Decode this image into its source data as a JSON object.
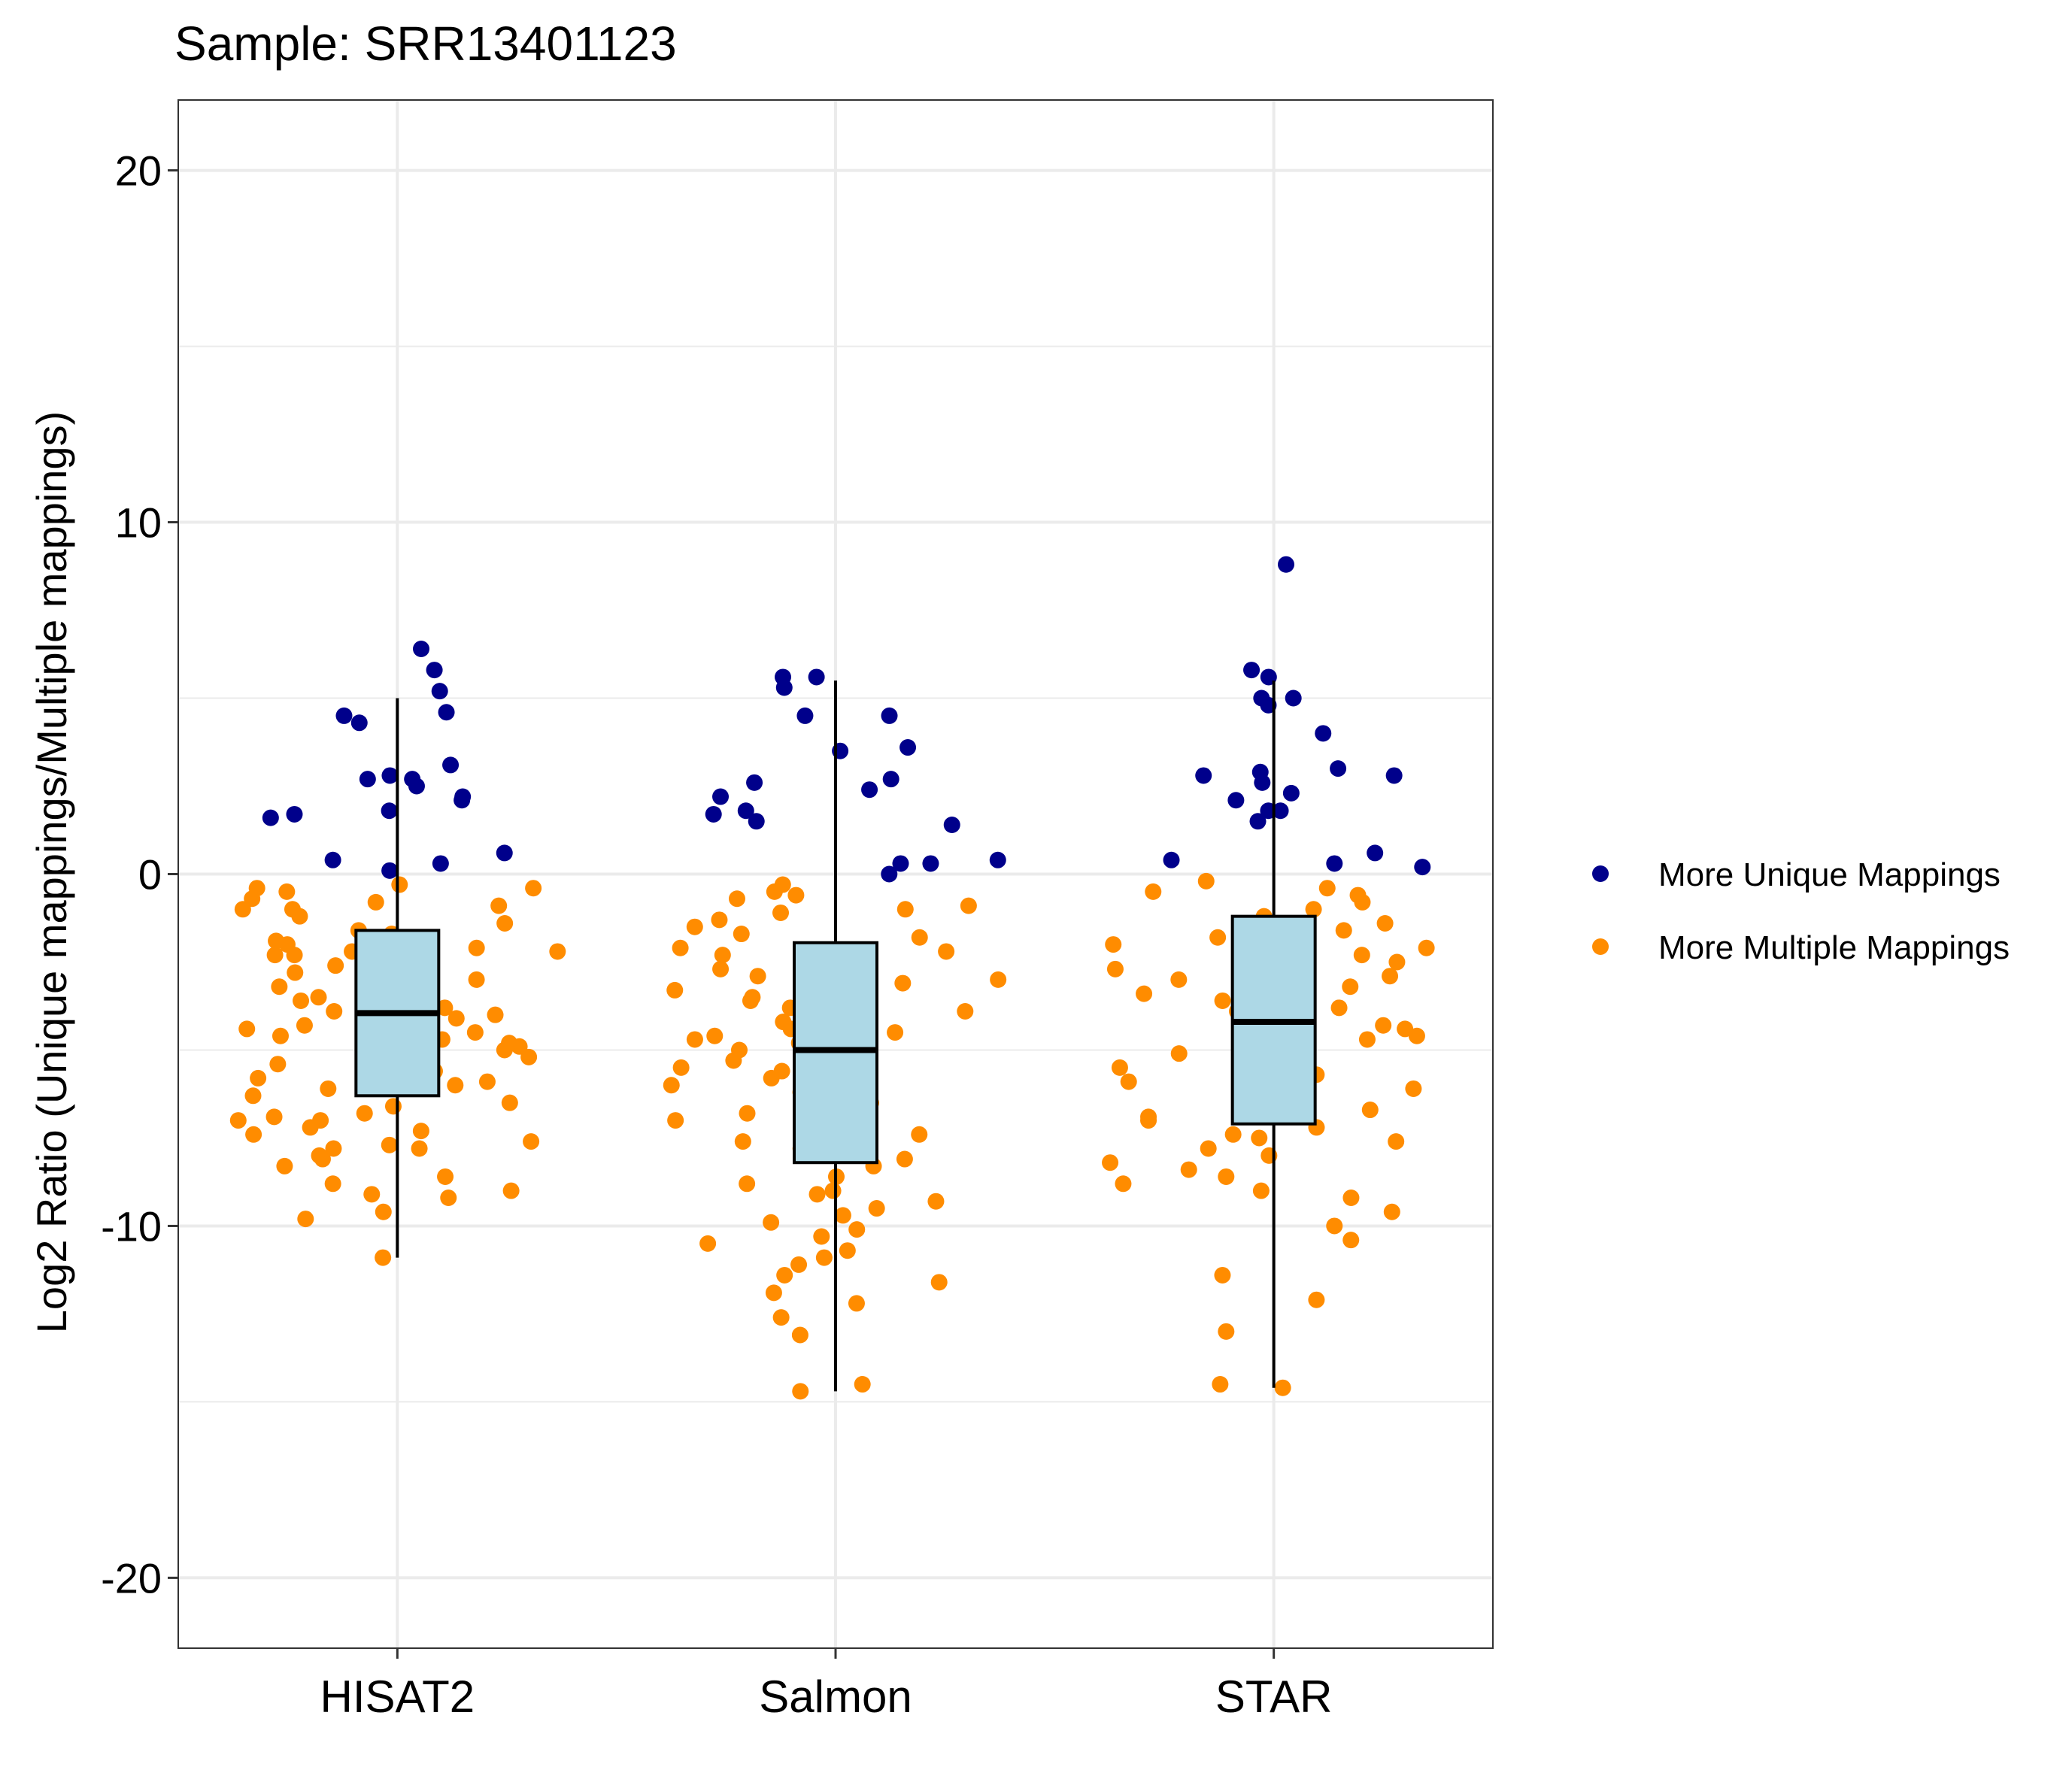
{
  "chart_data": {
    "type": "box_jitter",
    "title": "Sample: SRR13401123",
    "xlabel": "",
    "ylabel": "Log2 Ratio (Unique mappings/Multiple mappings)",
    "ylim": [
      -22,
      22
    ],
    "yticks": [
      -20,
      -10,
      0,
      10,
      20
    ],
    "ytick_labels": [
      "-20",
      "-10",
      "0",
      "10",
      "20"
    ],
    "grid": true,
    "legend_position": "right",
    "categories": [
      "HISAT2",
      "Salmon",
      "STAR"
    ],
    "legend": [
      {
        "label": "More Unique Mappings",
        "color": "#00008B"
      },
      {
        "label": "More Multiple Mappings",
        "color": "#FF8C00"
      }
    ],
    "box_fill": "#ADD8E6",
    "boxes": [
      {
        "category": "HISAT2",
        "lower_whisker": -10.9,
        "q1": -6.3,
        "median": -3.95,
        "q3": -1.6,
        "upper_whisker": 5.0
      },
      {
        "category": "Salmon",
        "lower_whisker": -14.7,
        "q1": -8.2,
        "median": -5.0,
        "q3": -1.95,
        "upper_whisker": 5.5
      },
      {
        "category": "STAR",
        "lower_whisker": -14.6,
        "q1": -7.1,
        "median": -4.2,
        "q3": -1.2,
        "upper_whisker": 5.5
      }
    ],
    "series": [
      {
        "name": "More Unique Mappings",
        "points": [
          {
            "category": "HISAT2",
            "y": [
              6.4,
              5.8,
              5.2,
              4.6,
              4.5,
              4.3,
              3.1,
              2.8,
              2.7,
              2.7,
              2.5,
              2.2,
              2.1,
              1.8,
              1.7,
              1.6,
              0.6,
              0.4,
              0.3,
              0.1
            ]
          },
          {
            "category": "Salmon",
            "y": [
              5.6,
              5.6,
              5.3,
              4.5,
              4.5,
              3.6,
              3.5,
              2.7,
              2.6,
              2.4,
              2.2,
              1.8,
              1.7,
              1.5,
              1.4,
              0.4,
              0.3,
              0.3,
              0.0
            ]
          },
          {
            "category": "STAR",
            "y": [
              8.8,
              5.8,
              5.6,
              5.0,
              5.0,
              4.8,
              4.0,
              3.0,
              2.9,
              2.8,
              2.8,
              2.6,
              2.3,
              2.1,
              1.8,
              1.8,
              1.5,
              0.6,
              0.4,
              0.3,
              0.2
            ]
          }
        ]
      },
      {
        "name": "More Multiple Mappings",
        "points": [
          {
            "category": "HISAT2",
            "y": [
              -0.3,
              -0.4,
              -0.4,
              -0.5,
              -0.7,
              -0.8,
              -0.9,
              -1.0,
              -1.0,
              -1.2,
              -1.4,
              -1.6,
              -1.7,
              -1.9,
              -2.0,
              -2.0,
              -2.1,
              -2.2,
              -2.2,
              -2.3,
              -2.3,
              -2.4,
              -2.5,
              -2.6,
              -2.8,
              -2.8,
              -3.0,
              -3.1,
              -3.2,
              -3.3,
              -3.4,
              -3.5,
              -3.6,
              -3.7,
              -3.8,
              -3.9,
              -4.0,
              -4.1,
              -4.2,
              -4.3,
              -4.4,
              -4.5,
              -4.5,
              -4.6,
              -4.7,
              -4.8,
              -4.9,
              -5.0,
              -5.2,
              -5.4,
              -5.6,
              -5.8,
              -5.9,
              -6.0,
              -6.1,
              -6.3,
              -6.5,
              -6.6,
              -6.8,
              -6.9,
              -7.0,
              -7.0,
              -7.2,
              -7.3,
              -7.4,
              -7.6,
              -7.7,
              -7.8,
              -7.8,
              -8.0,
              -8.1,
              -8.3,
              -8.6,
              -8.8,
              -9.0,
              -9.1,
              -9.2,
              -9.6,
              -9.8,
              -10.9
            ]
          },
          {
            "category": "Salmon",
            "y": [
              -0.3,
              -0.5,
              -0.6,
              -0.7,
              -0.9,
              -1.0,
              -1.1,
              -1.3,
              -1.5,
              -1.7,
              -1.8,
              -2.1,
              -2.2,
              -2.3,
              -2.5,
              -2.7,
              -2.9,
              -3.0,
              -3.1,
              -3.3,
              -3.5,
              -3.6,
              -3.8,
              -3.9,
              -4.0,
              -4.2,
              -4.4,
              -4.5,
              -4.6,
              -4.7,
              -4.8,
              -5.0,
              -5.1,
              -5.3,
              -5.5,
              -5.6,
              -5.8,
              -6.0,
              -6.2,
              -6.5,
              -6.8,
              -7.0,
              -7.2,
              -7.4,
              -7.6,
              -7.8,
              -7.9,
              -8.1,
              -8.3,
              -8.6,
              -8.8,
              -9.0,
              -9.1,
              -9.3,
              -9.5,
              -9.7,
              -9.9,
              -10.1,
              -10.3,
              -10.5,
              -10.7,
              -10.9,
              -11.1,
              -11.4,
              -11.6,
              -11.9,
              -12.2,
              -12.6,
              -13.1,
              -14.5,
              -14.7
            ]
          },
          {
            "category": "STAR",
            "y": [
              -0.2,
              -0.4,
              -0.5,
              -0.6,
              -0.8,
              -1.0,
              -1.2,
              -1.4,
              -1.6,
              -1.8,
              -2.0,
              -2.1,
              -2.2,
              -2.3,
              -2.4,
              -2.5,
              -2.7,
              -2.9,
              -3.0,
              -3.2,
              -3.4,
              -3.6,
              -3.8,
              -3.9,
              -4.1,
              -4.3,
              -4.4,
              -4.6,
              -4.7,
              -4.9,
              -5.1,
              -5.3,
              -5.5,
              -5.7,
              -5.9,
              -6.1,
              -6.3,
              -6.5,
              -6.7,
              -6.9,
              -7.0,
              -7.2,
              -7.4,
              -7.5,
              -7.6,
              -7.8,
              -8.0,
              -8.2,
              -8.4,
              -8.6,
              -8.8,
              -9.0,
              -9.2,
              -9.6,
              -10.0,
              -10.4,
              -11.4,
              -12.1,
              -13.0,
              -14.5,
              -14.6
            ]
          }
        ]
      }
    ]
  }
}
